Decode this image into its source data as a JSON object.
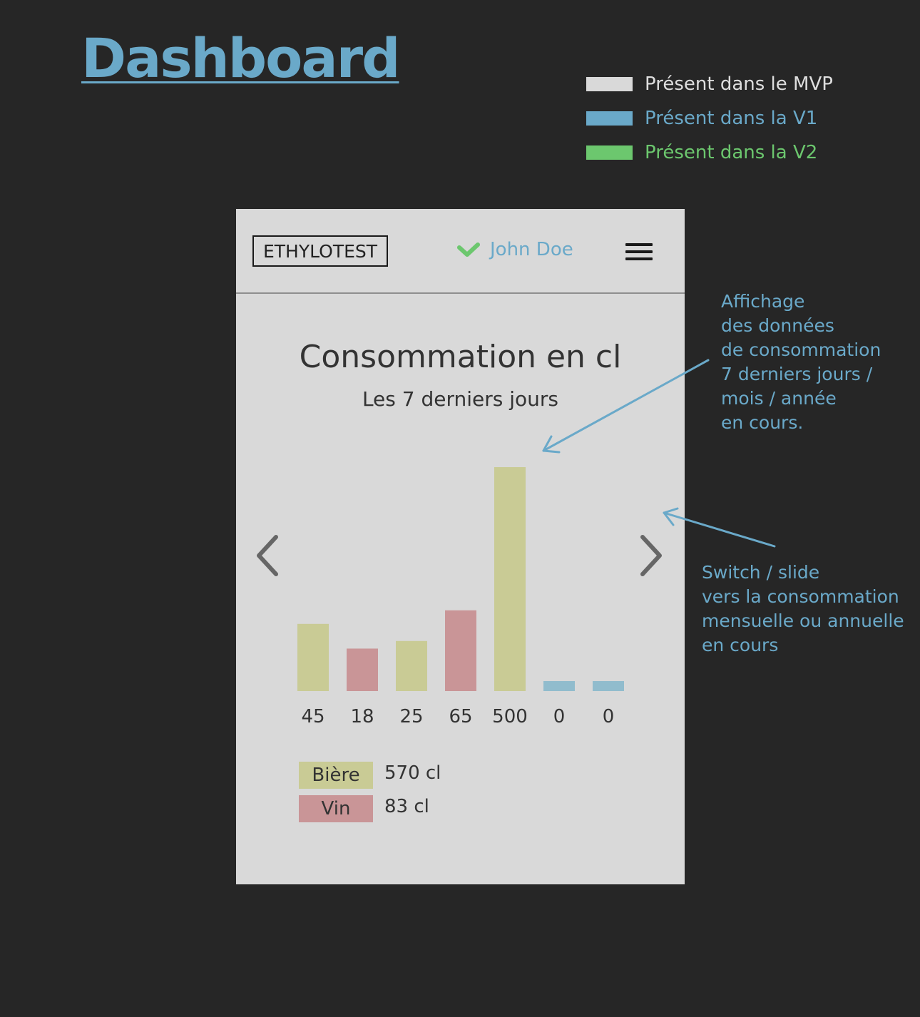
{
  "page_title": "Dashboard",
  "legend": [
    {
      "label": "Présent dans le MVP",
      "color": "#d9d9d9"
    },
    {
      "label": "Présent dans la V1",
      "color": "#6aa9c9"
    },
    {
      "label": "Présent dans la V2",
      "color": "#6cc76e"
    }
  ],
  "header": {
    "logo": "ETHYLOTEST",
    "user_name": "John Doe",
    "user_icon": "check-icon",
    "menu_icon": "hamburger-menu-icon"
  },
  "chart_data": {
    "type": "bar",
    "title": "Consommation en cl",
    "subtitle": "Les 7 derniers jours",
    "categories": [
      "45",
      "18",
      "25",
      "65",
      "500",
      "0",
      "0"
    ],
    "values": [
      45,
      18,
      25,
      65,
      500,
      0,
      0
    ],
    "bar_kinds": [
      "Bière",
      "Vin",
      "Bière",
      "Vin",
      "Bière",
      "none",
      "none"
    ],
    "colors": {
      "Bière": "#c9cb95",
      "Vin": "#c99597",
      "none": "#91bccd"
    },
    "nav": {
      "prev_icon": "chevron-left-icon",
      "next_icon": "chevron-right-icon"
    }
  },
  "summary": [
    {
      "label": "Bière",
      "value": "570 cl",
      "color": "#c9cb95"
    },
    {
      "label": "Vin",
      "value": "83 cl",
      "color": "#c99597"
    }
  ],
  "annotations": {
    "chart_note": [
      "Affichage",
      "des données",
      "de consommation",
      "7 derniers jours /",
      "mois / année",
      "en cours."
    ],
    "switch_note": [
      "Switch / slide",
      "vers la consommation",
      "mensuelle ou annuelle",
      "en cours"
    ]
  }
}
